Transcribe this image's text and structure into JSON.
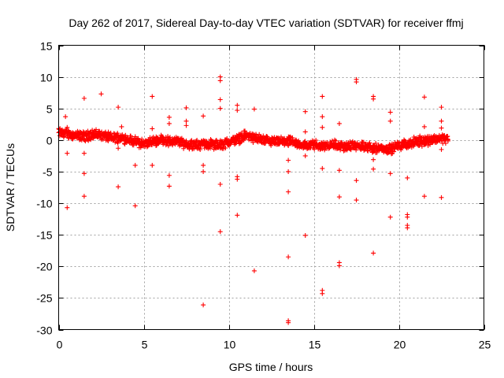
{
  "chart_data": {
    "type": "scatter",
    "title": "Day 262 of 2017, Sidereal Day-to-day VTEC variation (SDTVAR) for receiver ffmj",
    "xlabel": "GPS time / hours",
    "ylabel": "SDTVAR / TECUs",
    "xlim": [
      0,
      25
    ],
    "ylim": [
      -30,
      15
    ],
    "xticks": [
      0,
      5,
      10,
      15,
      20,
      25
    ],
    "yticks": [
      -30,
      -25,
      -20,
      -15,
      -10,
      -5,
      0,
      5,
      10,
      15
    ],
    "xtick_labels": [
      "0",
      "5",
      "10",
      "15",
      "20",
      "25"
    ],
    "ytick_labels": [
      "-30",
      "-25",
      "-20",
      "-15",
      "-10",
      "-5",
      "0",
      "5",
      "10",
      "15"
    ],
    "grid": true,
    "marker": "+",
    "color": "#ff0000",
    "series": [
      {
        "name": "SDTVAR",
        "band": [
          [
            0.0,
            1.2
          ],
          [
            0.5,
            1.0
          ],
          [
            1.0,
            0.7
          ],
          [
            1.5,
            0.6
          ],
          [
            2.0,
            0.9
          ],
          [
            2.5,
            0.8
          ],
          [
            3.0,
            0.4
          ],
          [
            3.5,
            0.4
          ],
          [
            4.0,
            0.2
          ],
          [
            4.5,
            -0.3
          ],
          [
            5.0,
            -0.6
          ],
          [
            5.5,
            -0.3
          ],
          [
            6.0,
            0.1
          ],
          [
            6.5,
            -0.2
          ],
          [
            7.0,
            -0.2
          ],
          [
            7.5,
            -0.6
          ],
          [
            8.0,
            -0.9
          ],
          [
            8.5,
            -0.6
          ],
          [
            9.0,
            -0.7
          ],
          [
            9.5,
            -0.8
          ],
          [
            10.0,
            -0.3
          ],
          [
            10.5,
            0.1
          ],
          [
            11.0,
            0.8
          ],
          [
            11.5,
            0.3
          ],
          [
            12.0,
            0.0
          ],
          [
            12.5,
            -0.3
          ],
          [
            13.0,
            -0.3
          ],
          [
            13.5,
            -0.2
          ],
          [
            14.0,
            -0.6
          ],
          [
            14.5,
            -0.9
          ],
          [
            15.0,
            -0.7
          ],
          [
            15.5,
            -0.9
          ],
          [
            16.0,
            -0.7
          ],
          [
            16.5,
            -0.9
          ],
          [
            17.0,
            -1.0
          ],
          [
            17.5,
            -0.9
          ],
          [
            18.0,
            -1.1
          ],
          [
            18.5,
            -1.2
          ],
          [
            19.0,
            -1.3
          ],
          [
            19.5,
            -1.4
          ],
          [
            20.0,
            -0.9
          ],
          [
            20.5,
            -0.6
          ],
          [
            21.0,
            -0.3
          ],
          [
            21.5,
            -0.1
          ],
          [
            22.0,
            0.1
          ],
          [
            22.5,
            0.3
          ],
          [
            22.9,
            0.2
          ]
        ],
        "band_spread": 0.9,
        "outliers": [
          [
            0.4,
            3.7
          ],
          [
            0.5,
            2.0
          ],
          [
            0.5,
            -2.1
          ],
          [
            0.5,
            -10.7
          ],
          [
            1.5,
            6.6
          ],
          [
            1.5,
            -2.1
          ],
          [
            1.5,
            -5.3
          ],
          [
            1.5,
            -8.9
          ],
          [
            2.5,
            7.3
          ],
          [
            3.5,
            5.2
          ],
          [
            3.5,
            -1.3
          ],
          [
            3.5,
            -7.4
          ],
          [
            3.7,
            2.1
          ],
          [
            4.5,
            -4.0
          ],
          [
            4.5,
            -10.4
          ],
          [
            5.5,
            6.9
          ],
          [
            5.5,
            1.8
          ],
          [
            5.5,
            -4.0
          ],
          [
            6.5,
            3.6
          ],
          [
            6.5,
            2.6
          ],
          [
            6.5,
            -5.6
          ],
          [
            6.5,
            -7.3
          ],
          [
            7.5,
            5.1
          ],
          [
            7.5,
            3.0
          ],
          [
            7.5,
            2.3
          ],
          [
            8.5,
            3.8
          ],
          [
            8.5,
            -4.0
          ],
          [
            8.5,
            -5.0
          ],
          [
            8.5,
            -26.1
          ],
          [
            9.5,
            10.0
          ],
          [
            9.5,
            9.4
          ],
          [
            9.5,
            6.4
          ],
          [
            9.5,
            5.0
          ],
          [
            9.5,
            -7.0
          ],
          [
            9.5,
            -14.5
          ],
          [
            10.5,
            5.5
          ],
          [
            10.5,
            4.7
          ],
          [
            10.5,
            -5.8
          ],
          [
            10.5,
            -6.2
          ],
          [
            10.5,
            -11.9
          ],
          [
            11.5,
            4.9
          ],
          [
            11.5,
            -20.7
          ],
          [
            13.5,
            -3.2
          ],
          [
            13.5,
            -5.0
          ],
          [
            13.5,
            -8.2
          ],
          [
            13.5,
            -18.5
          ],
          [
            13.5,
            -28.6
          ],
          [
            13.5,
            -28.9
          ],
          [
            14.5,
            4.5
          ],
          [
            14.5,
            1.3
          ],
          [
            14.5,
            -2.5
          ],
          [
            14.5,
            -15.1
          ],
          [
            15.5,
            6.9
          ],
          [
            15.5,
            3.7
          ],
          [
            15.5,
            2.0
          ],
          [
            15.5,
            -4.5
          ],
          [
            15.5,
            -23.8
          ],
          [
            15.5,
            -24.3
          ],
          [
            16.5,
            2.6
          ],
          [
            16.5,
            -4.8
          ],
          [
            16.5,
            -9.0
          ],
          [
            16.5,
            -19.4
          ],
          [
            16.5,
            -19.9
          ],
          [
            17.5,
            9.6
          ],
          [
            17.5,
            9.2
          ],
          [
            17.5,
            -6.4
          ],
          [
            17.5,
            -9.5
          ],
          [
            18.5,
            6.9
          ],
          [
            18.5,
            6.5
          ],
          [
            18.5,
            -3.1
          ],
          [
            18.5,
            -4.6
          ],
          [
            18.5,
            -17.9
          ],
          [
            19.5,
            4.4
          ],
          [
            19.5,
            3.0
          ],
          [
            19.5,
            -5.3
          ],
          [
            19.5,
            -12.2
          ],
          [
            20.5,
            -6.0
          ],
          [
            20.5,
            -11.8
          ],
          [
            20.5,
            -12.2
          ],
          [
            20.5,
            -13.5
          ],
          [
            20.5,
            -13.9
          ],
          [
            21.5,
            6.8
          ],
          [
            21.5,
            2.1
          ],
          [
            21.5,
            -8.9
          ],
          [
            22.5,
            5.2
          ],
          [
            22.5,
            3.0
          ],
          [
            22.5,
            1.9
          ],
          [
            22.5,
            -1.5
          ],
          [
            22.5,
            -9.1
          ]
        ]
      }
    ]
  }
}
